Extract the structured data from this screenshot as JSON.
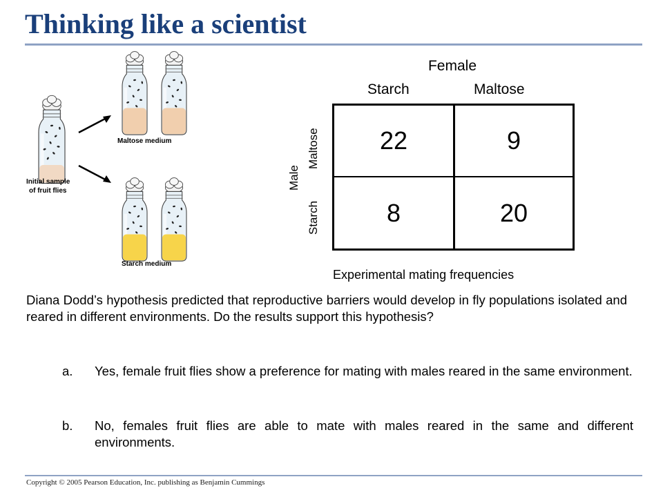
{
  "title": "Thinking like a scientist",
  "illustration": {
    "initial_label_line1": "Initial sample",
    "initial_label_line2": "of fruit flies",
    "maltose_label": "Maltose medium",
    "starch_label": "Starch medium"
  },
  "table": {
    "female_header": "Female",
    "col_headers": [
      "Starch",
      "Maltose"
    ],
    "male_header": "Male",
    "row_headers": [
      "Maltose",
      "Starch"
    ],
    "rows": [
      [
        "22",
        "9"
      ],
      [
        "8",
        "20"
      ]
    ],
    "caption": "Experimental mating frequencies"
  },
  "question": "Diana Dodd’s hypothesis predicted that reproductive barriers would develop in fly populations isolated and reared in different environments. Do the results support this hypothesis?",
  "options": [
    {
      "letter": "a.",
      "text": "Yes, female fruit flies show a preference for mating with males reared in the same environment."
    },
    {
      "letter": "b.",
      "text": "No, females fruit flies are able to mate with males reared in the same and different environments."
    }
  ],
  "footer": {
    "copyright": "Copyright © 2005 Pearson Education, Inc. publishing as Benjamin Cummings"
  },
  "colors": {
    "title": "#1a3f7a",
    "rule": "#8ea2c4",
    "maltose_medium": "#f1cfae",
    "starch_medium": "#f7d44a"
  }
}
